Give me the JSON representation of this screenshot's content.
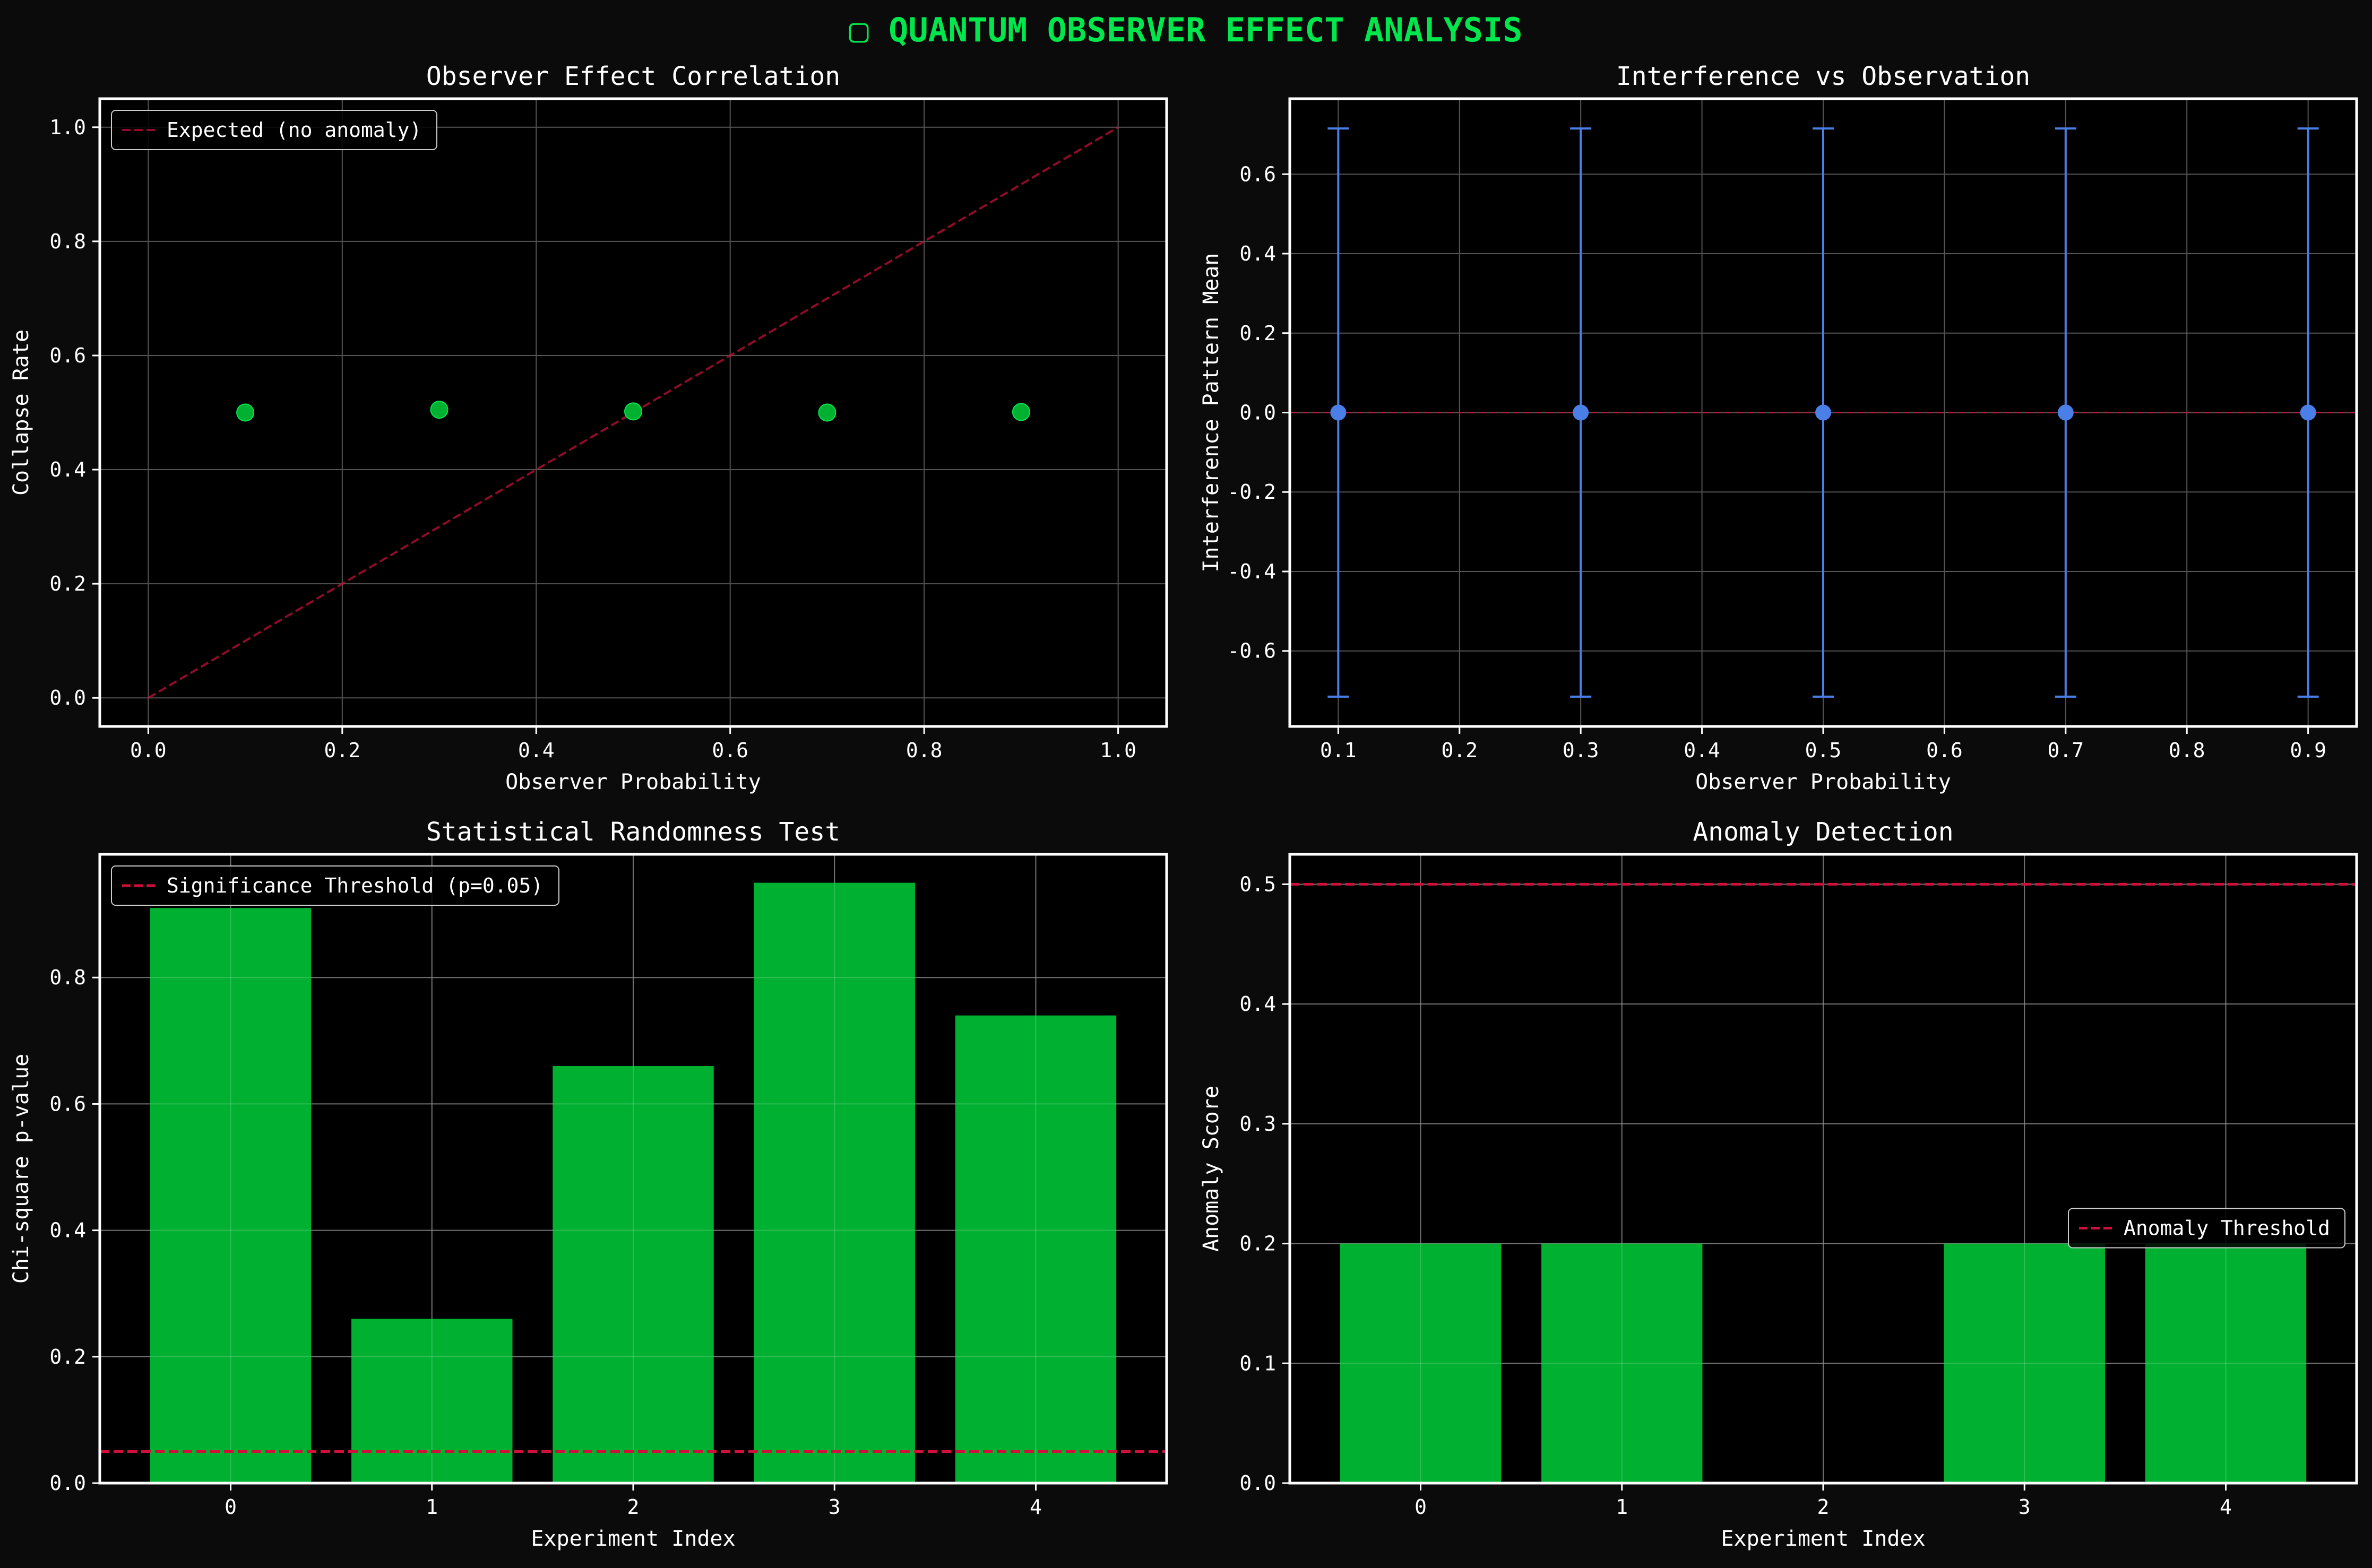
{
  "figure": {
    "title": "▢ QUANTUM OBSERVER EFFECT ANALYSIS",
    "title_color": "#00e64d",
    "background": "#0b0b0b"
  },
  "colors": {
    "axes_bg": "#000000",
    "spine": "#ffffff",
    "text": "#ffffff",
    "grid": "#555555",
    "green": "#00b030",
    "blue": "#4a7fe8",
    "red": "#d0103a"
  },
  "chart_data": [
    {
      "id": "observer-effect-correlation",
      "type": "scatter",
      "title": "Observer Effect Correlation",
      "xlabel": "Observer Probability",
      "ylabel": "Collapse Rate",
      "xlim": [
        -0.05,
        1.05
      ],
      "ylim": [
        -0.05,
        1.05
      ],
      "xticks": [
        0.0,
        0.2,
        0.4,
        0.6,
        0.8,
        1.0
      ],
      "yticks": [
        0.0,
        0.2,
        0.4,
        0.6,
        0.8,
        1.0
      ],
      "tick_decimals": 1,
      "grid": true,
      "legend_position": "upper-left",
      "points": {
        "x": [
          0.1,
          0.3,
          0.5,
          0.7,
          0.9
        ],
        "y": [
          0.5,
          0.505,
          0.502,
          0.5,
          0.501
        ]
      },
      "reference_line": {
        "label": "Expected (no anomaly)",
        "x": [
          0.0,
          1.0
        ],
        "y": [
          0.0,
          1.0
        ],
        "style": "dashed"
      }
    },
    {
      "id": "interference-vs-observation",
      "type": "errorbar",
      "title": "Interference vs Observation",
      "xlabel": "Observer Probability",
      "ylabel": "Interference Pattern Mean",
      "xlim": [
        0.06,
        0.94
      ],
      "ylim": [
        -0.79,
        0.79
      ],
      "xticks": [
        0.1,
        0.2,
        0.3,
        0.4,
        0.5,
        0.6,
        0.7,
        0.8,
        0.9
      ],
      "yticks": [
        -0.6,
        -0.4,
        -0.2,
        0.0,
        0.2,
        0.4,
        0.6
      ],
      "tick_decimals": 1,
      "grid": true,
      "points": {
        "x": [
          0.1,
          0.3,
          0.5,
          0.7,
          0.9
        ],
        "y": [
          0.0,
          0.0,
          0.0,
          0.0,
          0.0
        ],
        "yerr": [
          0.715,
          0.715,
          0.715,
          0.715,
          0.715
        ]
      },
      "reference_line": {
        "y": 0.0,
        "style": "dashed"
      }
    },
    {
      "id": "statistical-randomness-test",
      "type": "bar",
      "title": "Statistical Randomness Test",
      "xlabel": "Experiment Index",
      "ylabel": "Chi-square p-value",
      "xlim": [
        -0.65,
        4.65
      ],
      "ylim": [
        0.0,
        0.995
      ],
      "xticks": [
        0,
        1,
        2,
        3,
        4
      ],
      "yticks": [
        0.0,
        0.2,
        0.4,
        0.6,
        0.8
      ],
      "tick_decimals": 1,
      "grid": true,
      "legend_position": "upper-left",
      "categories": [
        0,
        1,
        2,
        3,
        4
      ],
      "values": [
        0.91,
        0.26,
        0.66,
        0.95,
        0.74
      ],
      "threshold": {
        "label": "Significance Threshold (p=0.05)",
        "y": 0.05,
        "style": "dashed"
      }
    },
    {
      "id": "anomaly-detection",
      "type": "bar",
      "title": "Anomaly Detection",
      "xlabel": "Experiment Index",
      "ylabel": "Anomaly Score",
      "xlim": [
        -0.65,
        4.65
      ],
      "ylim": [
        0.0,
        0.525
      ],
      "xticks": [
        0,
        1,
        2,
        3,
        4
      ],
      "yticks": [
        0.0,
        0.1,
        0.2,
        0.3,
        0.4,
        0.5
      ],
      "tick_decimals": 1,
      "grid": true,
      "legend_position": "center-right",
      "categories": [
        0,
        1,
        2,
        3,
        4
      ],
      "values": [
        0.2,
        0.2,
        0.0,
        0.2,
        0.2
      ],
      "threshold": {
        "label": "Anomaly Threshold",
        "y": 0.5,
        "style": "dashed"
      }
    }
  ]
}
